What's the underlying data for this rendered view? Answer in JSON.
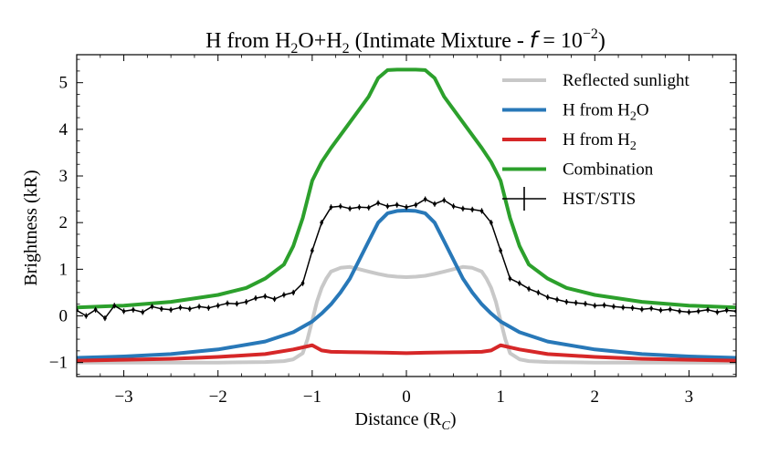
{
  "chart_data": {
    "type": "line",
    "title": {
      "prefix": "H from H",
      "sub1": "2",
      "mid1": "O+H",
      "sub2": "2",
      "mid2": " (Intimate Mixture - ",
      "f": "f",
      "eq": " = 10",
      "exp": "−2",
      "suffix": ")"
    },
    "xlabel": {
      "main": "Distance (R",
      "sub": "C",
      "end": ")"
    },
    "ylabel": "Brightness (kR)",
    "xlim": [
      -3.5,
      3.5
    ],
    "ylim": [
      -1.3,
      5.6
    ],
    "xticks": [
      -3,
      -2,
      -1,
      0,
      1,
      2,
      3
    ],
    "xtick_labels": [
      "−3",
      "−2",
      "−1",
      "0",
      "1",
      "2",
      "3"
    ],
    "yticks": [
      -1,
      0,
      1,
      2,
      3,
      4,
      5
    ],
    "ytick_labels": [
      "−1",
      "0",
      "1",
      "2",
      "3",
      "4",
      "5"
    ],
    "legend_position": "top-right",
    "grid": false,
    "series": [
      {
        "name": "Reflected sunlight",
        "color": "#c8c8c8",
        "x": [
          -3.5,
          -3.0,
          -2.5,
          -2.0,
          -1.5,
          -1.3,
          -1.2,
          -1.1,
          -1.05,
          -1.0,
          -0.95,
          -0.9,
          -0.85,
          -0.8,
          -0.7,
          -0.6,
          -0.5,
          -0.4,
          -0.3,
          -0.2,
          -0.1,
          0.0,
          0.1,
          0.2,
          0.3,
          0.4,
          0.5,
          0.6,
          0.7,
          0.8,
          0.85,
          0.9,
          0.95,
          1.0,
          1.05,
          1.1,
          1.2,
          1.3,
          1.5,
          2.0,
          2.5,
          3.0,
          3.5
        ],
        "y": [
          -1.0,
          -1.0,
          -1.0,
          -1.0,
          -0.99,
          -0.97,
          -0.93,
          -0.8,
          -0.5,
          -0.1,
          0.3,
          0.6,
          0.8,
          0.95,
          1.03,
          1.05,
          1.0,
          0.95,
          0.9,
          0.86,
          0.84,
          0.83,
          0.84,
          0.86,
          0.9,
          0.95,
          1.0,
          1.05,
          1.03,
          0.95,
          0.8,
          0.6,
          0.3,
          -0.1,
          -0.5,
          -0.8,
          -0.93,
          -0.97,
          -0.99,
          -1.0,
          -1.0,
          -1.0,
          -1.0
        ]
      },
      {
        "name": "H from H",
        "name_sub": "2",
        "name_end": "O",
        "color": "#2878b8",
        "x": [
          -3.5,
          -3.0,
          -2.5,
          -2.0,
          -1.5,
          -1.2,
          -1.0,
          -0.9,
          -0.8,
          -0.7,
          -0.6,
          -0.5,
          -0.4,
          -0.3,
          -0.2,
          -0.1,
          0.0,
          0.1,
          0.2,
          0.3,
          0.4,
          0.5,
          0.6,
          0.7,
          0.8,
          0.9,
          1.0,
          1.2,
          1.5,
          2.0,
          2.5,
          3.0,
          3.5
        ],
        "y": [
          -0.9,
          -0.87,
          -0.82,
          -0.72,
          -0.55,
          -0.35,
          -0.12,
          0.05,
          0.25,
          0.5,
          0.8,
          1.2,
          1.6,
          2.0,
          2.2,
          2.25,
          2.26,
          2.25,
          2.2,
          2.0,
          1.6,
          1.2,
          0.8,
          0.5,
          0.25,
          0.05,
          -0.12,
          -0.35,
          -0.55,
          -0.72,
          -0.82,
          -0.87,
          -0.9
        ]
      },
      {
        "name": "H from H",
        "name_sub": "2",
        "name_end": "",
        "color": "#d62728",
        "x": [
          -3.5,
          -3.0,
          -2.5,
          -2.0,
          -1.5,
          -1.2,
          -1.0,
          -0.9,
          -0.8,
          -0.5,
          -0.2,
          0.0,
          0.2,
          0.5,
          0.8,
          0.9,
          1.0,
          1.2,
          1.5,
          2.0,
          2.5,
          3.0,
          3.5
        ],
        "y": [
          -0.96,
          -0.94,
          -0.92,
          -0.88,
          -0.82,
          -0.72,
          -0.63,
          -0.74,
          -0.77,
          -0.78,
          -0.79,
          -0.8,
          -0.79,
          -0.78,
          -0.77,
          -0.74,
          -0.63,
          -0.72,
          -0.82,
          -0.88,
          -0.92,
          -0.94,
          -0.96
        ]
      },
      {
        "name": "Combination",
        "color": "#2ca02c",
        "x": [
          -3.5,
          -3.0,
          -2.5,
          -2.0,
          -1.7,
          -1.5,
          -1.3,
          -1.2,
          -1.1,
          -1.0,
          -0.95,
          -0.9,
          -0.8,
          -0.6,
          -0.4,
          -0.3,
          -0.2,
          -0.1,
          0.0,
          0.1,
          0.2,
          0.3,
          0.4,
          0.6,
          0.8,
          0.9,
          0.95,
          1.0,
          1.1,
          1.2,
          1.3,
          1.5,
          1.7,
          2.0,
          2.5,
          3.0,
          3.5
        ],
        "y": [
          0.18,
          0.22,
          0.3,
          0.45,
          0.6,
          0.8,
          1.1,
          1.5,
          2.1,
          2.9,
          3.1,
          3.3,
          3.6,
          4.15,
          4.7,
          5.1,
          5.27,
          5.28,
          5.28,
          5.28,
          5.27,
          5.1,
          4.7,
          4.15,
          3.6,
          3.3,
          3.1,
          2.9,
          2.1,
          1.5,
          1.1,
          0.8,
          0.6,
          0.45,
          0.3,
          0.22,
          0.18
        ]
      },
      {
        "name": "HST/STIS",
        "color": "#000000",
        "x": [
          -3.5,
          -3.4,
          -3.3,
          -3.2,
          -3.1,
          -3.0,
          -2.9,
          -2.8,
          -2.7,
          -2.6,
          -2.5,
          -2.4,
          -2.3,
          -2.2,
          -2.1,
          -2.0,
          -1.9,
          -1.8,
          -1.7,
          -1.6,
          -1.5,
          -1.4,
          -1.3,
          -1.2,
          -1.1,
          -1.0,
          -0.9,
          -0.8,
          -0.7,
          -0.6,
          -0.5,
          -0.4,
          -0.3,
          -0.2,
          -0.1,
          0.0,
          0.1,
          0.2,
          0.3,
          0.4,
          0.5,
          0.6,
          0.7,
          0.8,
          0.9,
          1.0,
          1.1,
          1.2,
          1.3,
          1.4,
          1.5,
          1.6,
          1.7,
          1.8,
          1.9,
          2.0,
          2.1,
          2.2,
          2.3,
          2.4,
          2.5,
          2.6,
          2.7,
          2.8,
          2.9,
          3.0,
          3.1,
          3.2,
          3.3,
          3.4,
          3.5
        ],
        "y": [
          0.12,
          0.0,
          0.13,
          -0.05,
          0.22,
          0.1,
          0.13,
          0.08,
          0.2,
          0.15,
          0.13,
          0.18,
          0.15,
          0.2,
          0.17,
          0.22,
          0.27,
          0.26,
          0.3,
          0.38,
          0.42,
          0.36,
          0.45,
          0.5,
          0.7,
          1.4,
          2.0,
          2.33,
          2.35,
          2.3,
          2.33,
          2.32,
          2.42,
          2.35,
          2.38,
          2.33,
          2.38,
          2.5,
          2.4,
          2.48,
          2.35,
          2.3,
          2.28,
          2.25,
          2.0,
          1.4,
          0.8,
          0.7,
          0.58,
          0.5,
          0.4,
          0.35,
          0.3,
          0.28,
          0.26,
          0.22,
          0.23,
          0.2,
          0.18,
          0.17,
          0.14,
          0.16,
          0.12,
          0.14,
          0.1,
          0.08,
          0.1,
          0.13,
          0.08,
          0.12,
          0.1
        ],
        "error": 0.06
      }
    ]
  }
}
